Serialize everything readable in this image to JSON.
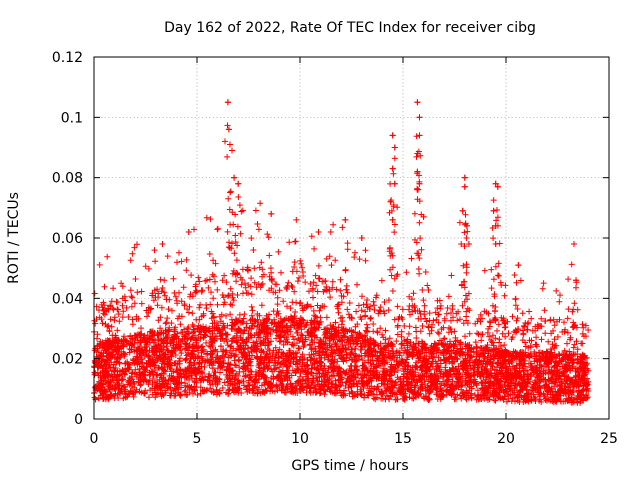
{
  "chart_data": {
    "type": "scatter",
    "title": "Day 162 of 2022, Rate Of TEC Index for receiver cibg",
    "xlabel": "GPS time / hours",
    "ylabel": "ROTI / TECUs",
    "xlim": [
      0,
      25
    ],
    "ylim": [
      0,
      0.12
    ],
    "x_ticks": [
      0,
      5,
      10,
      15,
      20,
      25
    ],
    "x_tick_labels": [
      "0",
      "5",
      "10",
      "15",
      "20",
      "25"
    ],
    "y_ticks": [
      0,
      0.02,
      0.04,
      0.06,
      0.08,
      0.1,
      0.12
    ],
    "y_tick_labels": [
      "0",
      "0.02",
      "0.04",
      "0.06",
      "0.08",
      "0.1",
      "0.12"
    ],
    "grid": true,
    "marker": "+",
    "marker_color": "#ff0000",
    "series": [
      {
        "name": "ROTI",
        "x_range": [
          0,
          24
        ],
        "baseline_profile": [
          {
            "x": 0.0,
            "y": 0.018
          },
          {
            "x": 2.0,
            "y": 0.02
          },
          {
            "x": 5.0,
            "y": 0.022
          },
          {
            "x": 7.0,
            "y": 0.024
          },
          {
            "x": 10.0,
            "y": 0.024
          },
          {
            "x": 12.0,
            "y": 0.022
          },
          {
            "x": 14.0,
            "y": 0.018
          },
          {
            "x": 16.0,
            "y": 0.018
          },
          {
            "x": 18.0,
            "y": 0.018
          },
          {
            "x": 20.0,
            "y": 0.016
          },
          {
            "x": 22.0,
            "y": 0.016
          },
          {
            "x": 24.0,
            "y": 0.015
          }
        ],
        "peaks": [
          {
            "x": 6.5,
            "y": 0.105
          },
          {
            "x": 6.55,
            "y": 0.096
          },
          {
            "x": 6.6,
            "y": 0.091
          },
          {
            "x": 6.7,
            "y": 0.089
          },
          {
            "x": 6.8,
            "y": 0.08
          },
          {
            "x": 7.0,
            "y": 0.078
          },
          {
            "x": 8.6,
            "y": 0.068
          },
          {
            "x": 4.6,
            "y": 0.062
          },
          {
            "x": 10.9,
            "y": 0.062
          },
          {
            "x": 12.2,
            "y": 0.066
          },
          {
            "x": 13.0,
            "y": 0.06
          },
          {
            "x": 14.5,
            "y": 0.094
          },
          {
            "x": 14.6,
            "y": 0.09
          },
          {
            "x": 14.5,
            "y": 0.083
          },
          {
            "x": 14.6,
            "y": 0.078
          },
          {
            "x": 14.4,
            "y": 0.072
          },
          {
            "x": 14.5,
            "y": 0.066
          },
          {
            "x": 15.7,
            "y": 0.105
          },
          {
            "x": 15.8,
            "y": 0.1
          },
          {
            "x": 15.8,
            "y": 0.094
          },
          {
            "x": 15.7,
            "y": 0.088
          },
          {
            "x": 15.7,
            "y": 0.082
          },
          {
            "x": 15.8,
            "y": 0.078
          },
          {
            "x": 16.0,
            "y": 0.067
          },
          {
            "x": 18.0,
            "y": 0.08
          },
          {
            "x": 18.0,
            "y": 0.077
          },
          {
            "x": 17.9,
            "y": 0.069
          },
          {
            "x": 18.1,
            "y": 0.064
          },
          {
            "x": 18.2,
            "y": 0.058
          },
          {
            "x": 19.5,
            "y": 0.078
          },
          {
            "x": 19.6,
            "y": 0.077
          },
          {
            "x": 19.4,
            "y": 0.069
          },
          {
            "x": 19.5,
            "y": 0.064
          },
          {
            "x": 19.5,
            "y": 0.058
          },
          {
            "x": 20.6,
            "y": 0.051
          },
          {
            "x": 23.3,
            "y": 0.058
          },
          {
            "x": 23.4,
            "y": 0.046
          }
        ]
      }
    ]
  }
}
